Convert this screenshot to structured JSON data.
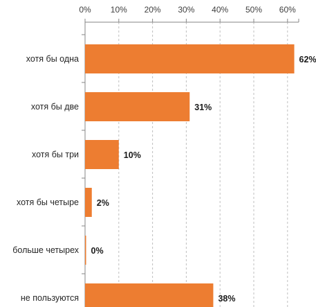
{
  "chart_data": {
    "type": "bar",
    "orientation": "horizontal",
    "categories": [
      "хотя бы одна",
      "хотя бы две",
      "хотя бы три",
      "хотя бы четыре",
      "больше четырех",
      "не пользуются"
    ],
    "values": [
      62,
      31,
      10,
      2,
      0,
      38
    ],
    "value_labels": [
      "62%",
      "31%",
      "10%",
      "2%",
      "0%",
      "38%"
    ],
    "x_ticks": [
      0,
      10,
      20,
      30,
      40,
      50,
      60
    ],
    "x_tick_labels": [
      "0%",
      "10%",
      "20%",
      "30%",
      "40%",
      "50%",
      "60%"
    ],
    "xlim": [
      0,
      65
    ],
    "axis_position": "top",
    "grid": true,
    "bar_color": "#ED7D31",
    "gridline_color": "#bfbfbf"
  }
}
